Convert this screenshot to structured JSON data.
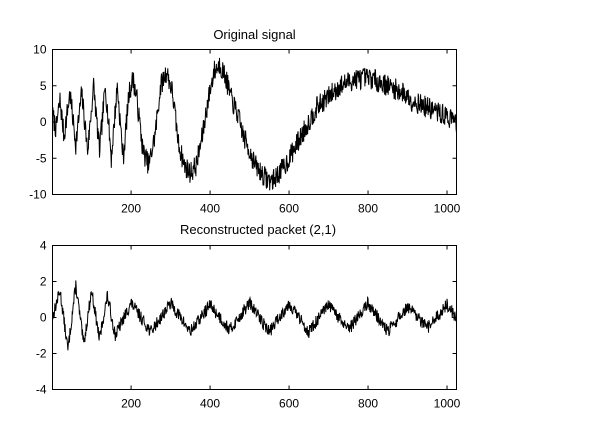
{
  "chart_data": [
    {
      "type": "line",
      "title": "Original signal",
      "xlabel": "",
      "ylabel": "",
      "xlim": [
        1,
        1024
      ],
      "ylim": [
        -10,
        10
      ],
      "xticks": [
        200,
        400,
        600,
        800,
        1000
      ],
      "yticks": [
        -10,
        -5,
        0,
        5,
        10
      ],
      "grid": false,
      "series": [
        {
          "x": [
            1,
            10,
            20,
            30,
            45,
            60,
            75,
            90,
            105,
            120,
            135,
            150,
            165,
            180,
            195,
            205,
            215,
            230,
            245,
            260,
            275,
            290,
            305,
            320,
            335,
            350,
            365,
            380,
            395,
            410,
            425,
            440,
            455,
            470,
            485,
            500,
            515,
            530,
            545,
            560,
            575,
            590,
            610,
            630,
            650,
            670,
            690,
            710,
            730,
            750,
            770,
            790,
            810,
            830,
            850,
            870,
            890,
            910,
            930,
            950,
            970,
            990,
            1010,
            1024
          ],
          "values": [
            1,
            -1,
            3,
            -2,
            4,
            -3,
            4,
            -4,
            5,
            -4,
            5,
            -5,
            5,
            -5,
            4,
            6,
            3,
            -4,
            -6,
            -2,
            5,
            7,
            4,
            -3,
            -6,
            -7,
            -6,
            -2,
            3,
            7,
            8,
            6,
            3,
            1,
            -2,
            -4,
            -6,
            -7,
            -8,
            -8,
            -7,
            -6,
            -4,
            -2,
            0,
            2,
            3,
            4,
            5,
            5.5,
            6,
            6,
            6,
            5.5,
            5,
            4.5,
            4,
            3,
            2.5,
            2,
            1.5,
            1,
            0.5,
            0
          ]
        }
      ]
    },
    {
      "type": "line",
      "title": "Reconstructed packet (2,1)",
      "xlabel": "",
      "ylabel": "",
      "xlim": [
        1,
        1024
      ],
      "ylim": [
        -4,
        4
      ],
      "xticks": [
        200,
        400,
        600,
        800,
        1000
      ],
      "yticks": [
        -4,
        -2,
        0,
        2,
        4
      ],
      "grid": false,
      "series": [
        {
          "x": [
            1,
            20,
            40,
            60,
            80,
            100,
            120,
            140,
            160,
            200,
            250,
            300,
            350,
            400,
            450,
            500,
            550,
            600,
            650,
            700,
            750,
            800,
            850,
            900,
            950,
            1000,
            1024
          ],
          "values": [
            0,
            1.5,
            -1.8,
            1.8,
            -1.5,
            1.5,
            -1.2,
            1.2,
            -1,
            0.8,
            -0.8,
            0.8,
            -0.8,
            0.7,
            -0.7,
            0.8,
            -0.8,
            0.8,
            -0.8,
            0.7,
            -0.7,
            0.8,
            -0.8,
            0.6,
            -0.6,
            0.7,
            0
          ]
        }
      ]
    }
  ]
}
